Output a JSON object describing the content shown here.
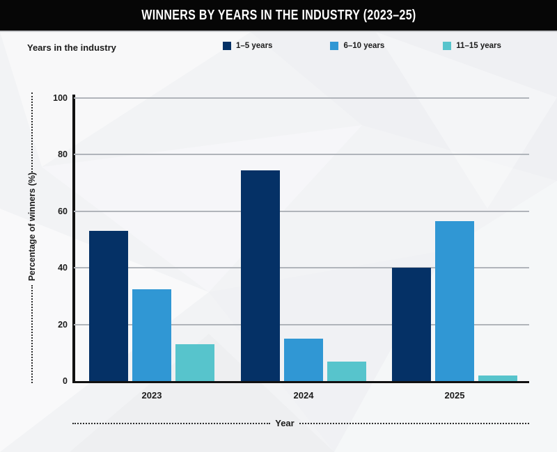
{
  "header": {
    "title": "WINNERS BY YEARS IN THE INDUSTRY (2023–25)"
  },
  "legend": {
    "title": "Years in the industry",
    "items": [
      {
        "label": "1–5 years",
        "color": "#053166"
      },
      {
        "label": "6–10 years",
        "color": "#3097d4"
      },
      {
        "label": "11–15 years",
        "color": "#57c4cc"
      }
    ]
  },
  "axes": {
    "xlabel": "Year",
    "ylabel": "Percentage of winners (%)"
  },
  "chart_data": {
    "type": "bar",
    "title": "WINNERS BY YEARS IN THE INDUSTRY (2023–25)",
    "categories": [
      "2023",
      "2024",
      "2025"
    ],
    "series": [
      {
        "name": "1–5 years",
        "color": "#053166",
        "values": [
          53,
          74.5,
          40
        ]
      },
      {
        "name": "6–10 years",
        "color": "#3097d4",
        "values": [
          32.5,
          15,
          56.5
        ]
      },
      {
        "name": "11–15 years",
        "color": "#57c4cc",
        "values": [
          13,
          7,
          2
        ]
      }
    ],
    "xlabel": "Year",
    "ylabel": "Percentage of winners (%)",
    "ylim": [
      0,
      100
    ],
    "yticks": [
      0,
      20,
      40,
      60,
      80,
      100
    ],
    "grid": true,
    "legend_position": "top"
  }
}
